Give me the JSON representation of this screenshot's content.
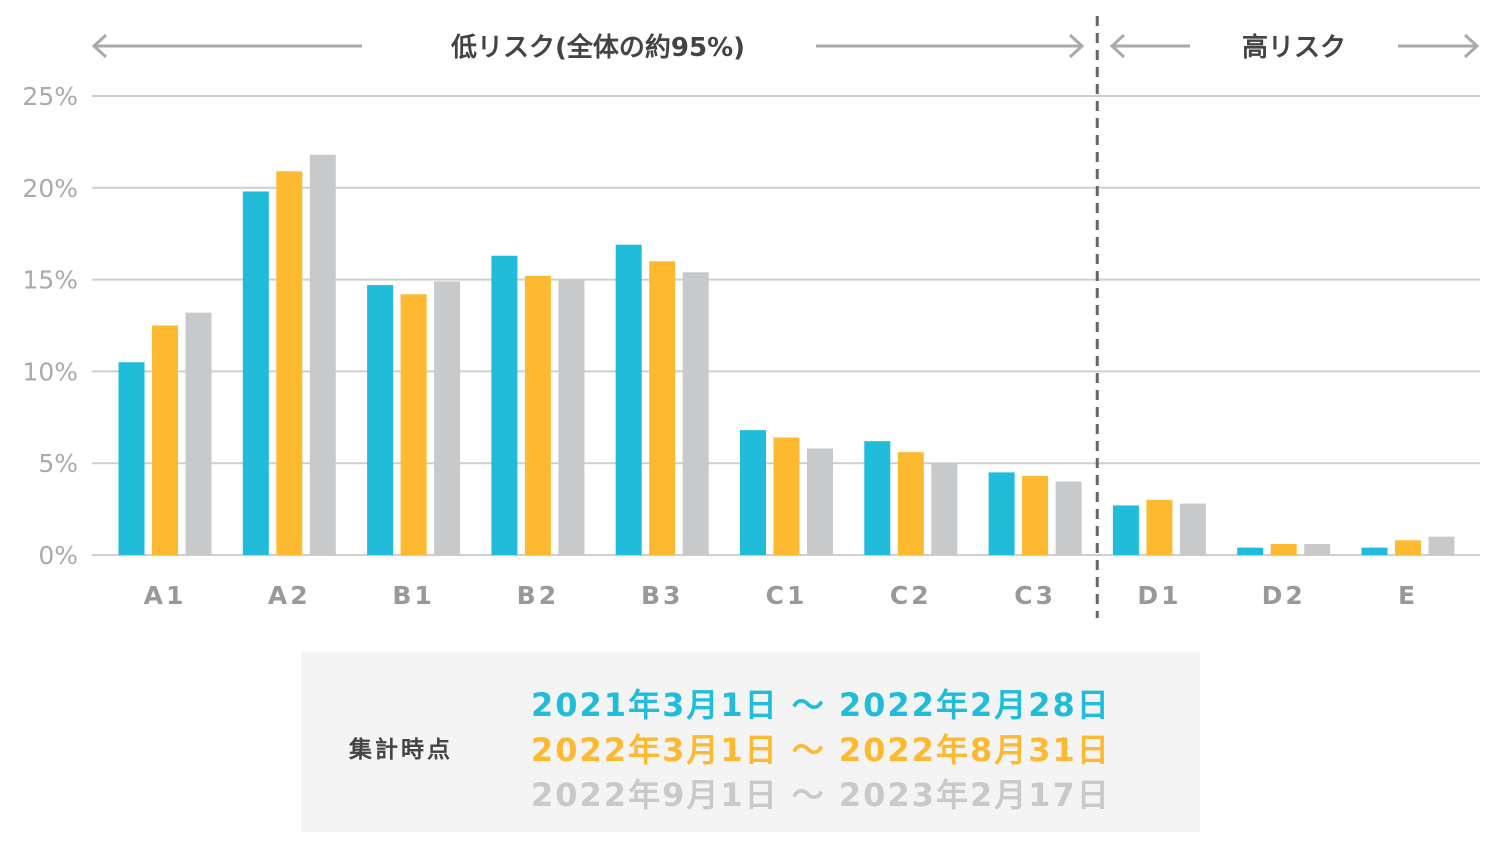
{
  "chart_data": {
    "type": "bar",
    "categories": [
      "A1",
      "A2",
      "B1",
      "B2",
      "B3",
      "C1",
      "C2",
      "C3",
      "D1",
      "D2",
      "E"
    ],
    "series": [
      {
        "name": "2021年3月1日 〜 2022年2月28日",
        "color": "#20bcd9",
        "values": [
          10.5,
          19.8,
          14.7,
          16.3,
          16.9,
          6.8,
          6.2,
          4.5,
          2.7,
          0.4,
          0.4
        ]
      },
      {
        "name": "2022年3月1日 〜 2022年8月31日",
        "color": "#fdb930",
        "values": [
          12.5,
          20.9,
          14.2,
          15.2,
          16.0,
          6.4,
          5.6,
          4.3,
          3.0,
          0.6,
          0.8
        ]
      },
      {
        "name": "2022年9月1日 〜 2023年2月17日",
        "color": "#c8c9ca",
        "values": [
          13.2,
          21.8,
          14.9,
          15.0,
          15.4,
          5.8,
          5.0,
          4.0,
          2.8,
          0.6,
          1.0
        ]
      }
    ],
    "ylim": [
      0,
      25
    ],
    "yticks": [
      "0%",
      "5%",
      "10%",
      "15%",
      "20%",
      "25%"
    ],
    "ytick_values": [
      0,
      5,
      10,
      15,
      20,
      25
    ],
    "grid": true,
    "annotations": {
      "low_risk_label": "低リスク(全体の約95%)",
      "high_risk_label": "高リスク",
      "divider_between": [
        "C3",
        "D1"
      ]
    }
  },
  "legend": {
    "title": "集計時点",
    "rows": [
      {
        "text": "2021年3月1日 〜 2022年2月28日",
        "color": "#20bcd9"
      },
      {
        "text": "2022年3月1日 〜 2022年8月31日",
        "color": "#fdb930"
      },
      {
        "text": "2022年9月1日 〜 2023年2月17日",
        "color": "#c8c9ca"
      }
    ]
  }
}
